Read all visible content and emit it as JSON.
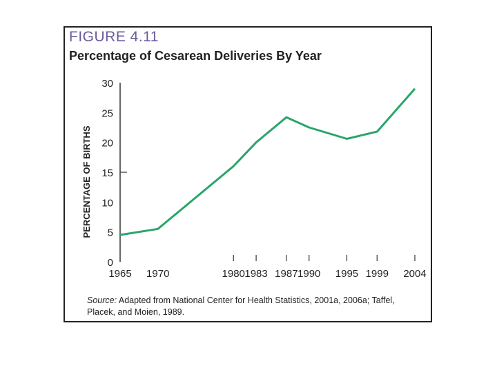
{
  "figure": {
    "label": "FIGURE 4.11",
    "title": "Percentage of Cesarean Deliveries By Year"
  },
  "chart_data": {
    "type": "line",
    "title": "Percentage of Cesarean Deliveries By Year",
    "xlabel": "",
    "ylabel": "PERCENTAGE OF BIRTHS",
    "categories": [
      "1965",
      "1970",
      "1980",
      "1983",
      "1987",
      "1990",
      "1995",
      "1999",
      "2004"
    ],
    "series": [
      {
        "name": "Cesarean deliveries",
        "values": [
          4.5,
          5.5,
          16,
          20,
          24.2,
          22.5,
          20.6,
          21.8,
          29
        ]
      }
    ],
    "y_ticks": [
      0,
      5,
      10,
      15,
      20,
      25,
      30
    ],
    "ylim": [
      0,
      30
    ],
    "grid": false,
    "line_color": "#2aa56b"
  },
  "source": {
    "label": "Source:",
    "text": "Adapted from National Center for Health Statistics, 2001a, 2006a; Taffel, Placek, and Moien, 1989."
  }
}
